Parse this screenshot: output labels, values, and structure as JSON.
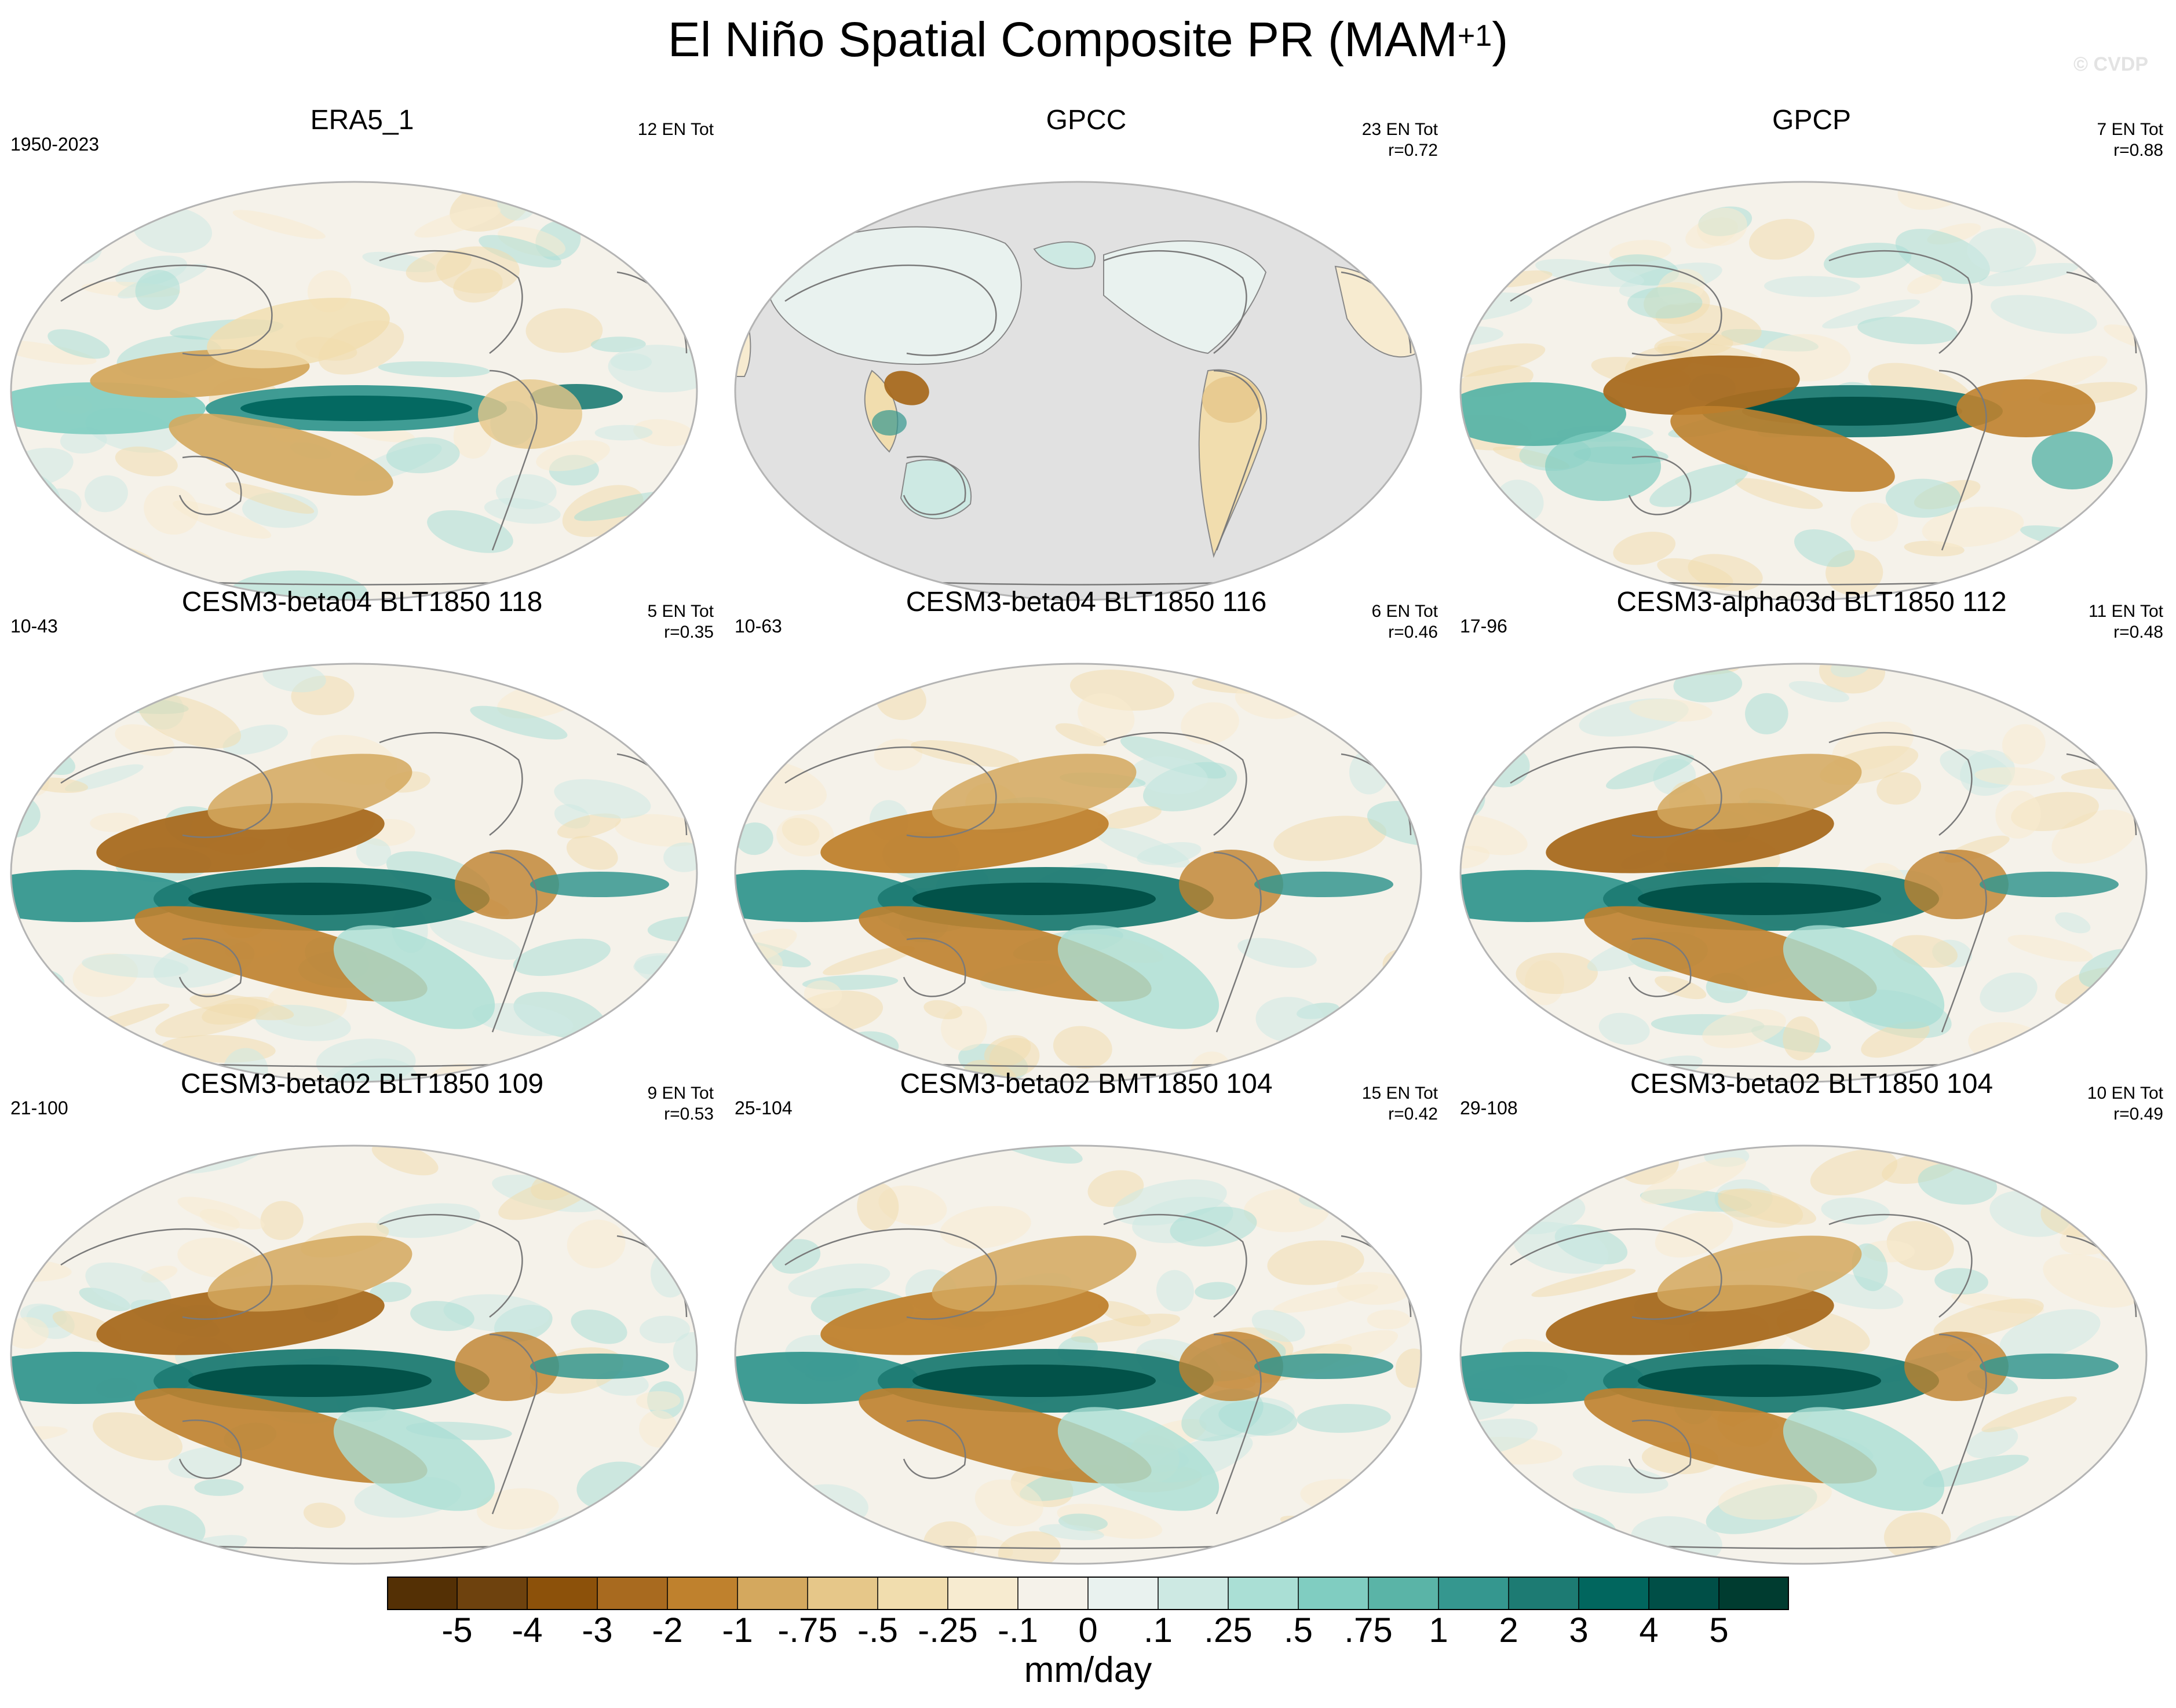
{
  "title": "El Niño Spatial Composite PR (MAM",
  "title_superscript": "+1",
  "title_close": ")",
  "watermark": "© CVDP",
  "units": "mm/day",
  "colorbar": {
    "labels": [
      "-5",
      "-4",
      "-3",
      "-2",
      "-1",
      "-.75",
      "-.5",
      "-.25",
      "-.1",
      "0",
      ".1",
      ".25",
      ".5",
      ".75",
      "1",
      "2",
      "3",
      "4",
      "5"
    ],
    "colors": [
      "#543005",
      "#6e420e",
      "#8c510a",
      "#a86a1f",
      "#bf812d",
      "#d4a85e",
      "#e6c789",
      "#f1ddae",
      "#f7ebd0",
      "#f5f2ea",
      "#e9f2ef",
      "#cde9e3",
      "#aadfd5",
      "#80cdc1",
      "#5ab4a7",
      "#35978f",
      "#1d7b73",
      "#01665e",
      "#004f47",
      "#003c30"
    ]
  },
  "panels": [
    {
      "title": "ERA5_1",
      "period": "1950-2023",
      "stats": [
        "12 EN Tot"
      ],
      "kind": "era5"
    },
    {
      "title": "GPCC",
      "period": "",
      "stats": [
        "23 EN Tot",
        "r=0.72"
      ],
      "kind": "gpcc"
    },
    {
      "title": "GPCP",
      "period": "",
      "stats": [
        "7 EN Tot",
        "r=0.88"
      ],
      "kind": "gpcp"
    },
    {
      "title": "CESM3-beta04 BLT1850 118",
      "period": "10-43",
      "stats": [
        "5 EN Tot",
        "r=0.35"
      ],
      "kind": "model"
    },
    {
      "title": "CESM3-beta04 BLT1850 116",
      "period": "10-63",
      "stats": [
        "6 EN Tot",
        "r=0.46"
      ],
      "kind": "model"
    },
    {
      "title": "CESM3-alpha03d BLT1850 112",
      "period": "17-96",
      "stats": [
        "11 EN Tot",
        "r=0.48"
      ],
      "kind": "model"
    },
    {
      "title": "CESM3-beta02 BLT1850 109",
      "period": "21-100",
      "stats": [
        "9 EN Tot",
        "r=0.53"
      ],
      "kind": "model"
    },
    {
      "title": "CESM3-beta02 BMT1850 104",
      "period": "25-104",
      "stats": [
        "15 EN Tot",
        "r=0.42"
      ],
      "kind": "model"
    },
    {
      "title": "CESM3-beta02 BLT1850 104",
      "period": "29-108",
      "stats": [
        "10 EN Tot",
        "r=0.49"
      ],
      "kind": "model"
    }
  ]
}
